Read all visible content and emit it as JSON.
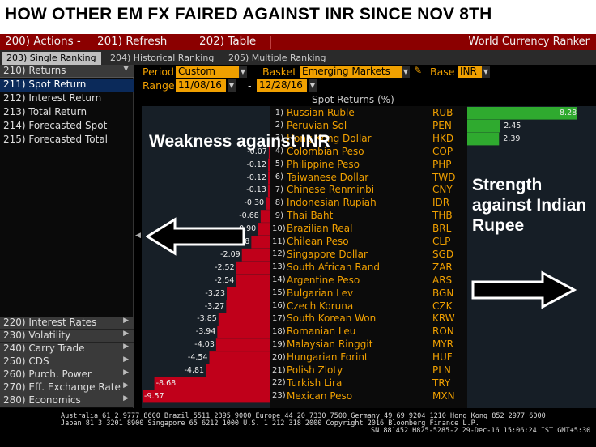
{
  "banner": {
    "text": "HOW OTHER EM FX FAIRED AGAINST INR SINCE NOV 8TH"
  },
  "menu": {
    "actions": "200) Actions -",
    "refresh": "201) Refresh",
    "table": "202) Table",
    "app_title": "World Currency Ranker"
  },
  "tabs": [
    {
      "label": "203) Single Ranking"
    },
    {
      "label": "204) Historical Ranking"
    },
    {
      "label": "205) Multiple Ranking"
    }
  ],
  "sidebar": {
    "header": "210) Returns",
    "items": [
      {
        "label": "211) Spot Return"
      },
      {
        "label": "212) Interest Return"
      },
      {
        "label": "213) Total Return"
      },
      {
        "label": "214) Forecasted Spot"
      },
      {
        "label": "215) Forecasted Total"
      }
    ],
    "bottom": [
      {
        "label": "220) Interest Rates"
      },
      {
        "label": "230) Volatility"
      },
      {
        "label": "240) Carry Trade"
      },
      {
        "label": "250) CDS"
      },
      {
        "label": "260) Purch. Power"
      },
      {
        "label": "270) Eff. Exchange Rate"
      },
      {
        "label": "280) Economics"
      }
    ]
  },
  "controls": {
    "period_label": "Period",
    "period_value": "Custom",
    "basket_label": "Basket",
    "basket_value": "Emerging Markets",
    "base_label": "Base",
    "base_value": "INR",
    "range_label": "Range",
    "range_start": "11/08/16",
    "range_sep": "-",
    "range_end": "12/28/16"
  },
  "chart_header": "Spot Returns (%)",
  "overlay": {
    "left": "Weakness against INR",
    "right": "Strength against Indian Rupee"
  },
  "colors": {
    "negative_bar": "#c0001a",
    "positive_bar": "#2faa2f",
    "accent": "#f0a000"
  },
  "chart_data": {
    "type": "bar",
    "categories": [
      "Russian Ruble",
      "Peruvian Sol",
      "Hong Kong Dollar",
      "Colombian Peso",
      "Philippine Peso",
      "Taiwanese Dollar",
      "Chinese Renminbi",
      "Indonesian Rupiah",
      "Thai Baht",
      "Brazilian Real",
      "Chilean Peso",
      "Singapore Dollar",
      "South African Rand",
      "Argentine Peso",
      "Bulgarian Lev",
      "Czech Koruna",
      "South Korean Won",
      "Romanian Leu",
      "Malaysian Ringgit",
      "Hungarian Forint",
      "Polish Zloty",
      "Turkish Lira",
      "Mexican Peso"
    ],
    "codes": [
      "RUB",
      "PEN",
      "HKD",
      "COP",
      "PHP",
      "TWD",
      "CNY",
      "IDR",
      "THB",
      "BRL",
      "CLP",
      "SGD",
      "ZAR",
      "ARS",
      "BGN",
      "CZK",
      "KRW",
      "RON",
      "MYR",
      "HUF",
      "PLN",
      "TRY",
      "MXN"
    ],
    "ranks": [
      "1)",
      "2)",
      "3)",
      "4)",
      "5)",
      "6)",
      "7)",
      "8)",
      "9)",
      "10)",
      "11)",
      "12)",
      "13)",
      "14)",
      "15)",
      "16)",
      "17)",
      "18)",
      "19)",
      "20)",
      "21)",
      "22)",
      "23)"
    ],
    "values": [
      8.28,
      2.45,
      2.39,
      -0.07,
      -0.12,
      -0.12,
      -0.13,
      -0.3,
      -0.68,
      -0.9,
      -1.38,
      -2.09,
      -2.52,
      -2.54,
      -3.23,
      -3.27,
      -3.85,
      -3.94,
      -4.03,
      -4.54,
      -4.81,
      -8.68,
      -9.57
    ],
    "labels": [
      "8.28",
      "2.45",
      "2.39",
      "-0.07",
      "-0.12",
      "-0.12",
      "-0.13",
      "-0.30",
      "-0.68",
      "-0.90",
      "-1.38",
      "-2.09",
      "-2.52",
      "-2.54",
      "-3.23",
      "-3.27",
      "-3.85",
      "-3.94",
      "-4.03",
      "-4.54",
      "-4.81",
      "-8.68",
      "-9.57"
    ],
    "ylabel": "Spot Returns (%)"
  },
  "footer": {
    "line1": "Australia 61 2 9777 8600 Brazil 5511 2395 9000 Europe 44 20 7330 7500 Germany 49 69 9204 1210 Hong Kong 852 2977 6000",
    "line2": "Japan 81 3 3201 8900        Singapore 65 6212 1000        U.S. 1 212 318 2000        Copyright 2016 Bloomberg Finance L.P.",
    "line3": "SN 881452 H825-5285-2 29-Dec-16 15:06:24 IST  GMT+5:30"
  }
}
